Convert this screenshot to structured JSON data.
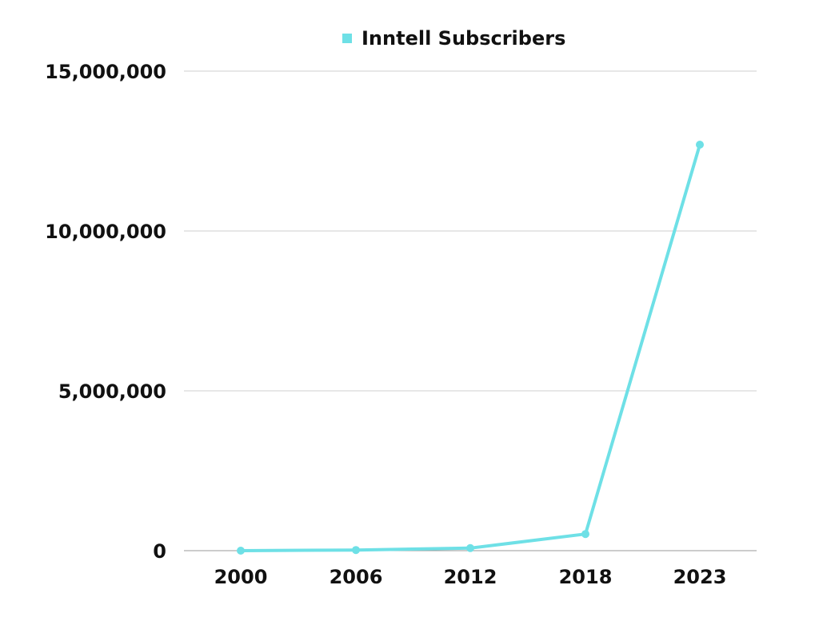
{
  "chart_data": {
    "type": "line",
    "title": "",
    "xlabel": "",
    "ylabel": "",
    "categories": [
      "2000",
      "2006",
      "2012",
      "2018",
      "2023"
    ],
    "series": [
      {
        "name": "Inntell Subscribers",
        "color": "#6ee0e6",
        "values": [
          0,
          20000,
          80000,
          520000,
          12700000
        ]
      }
    ],
    "yticks": [
      "0",
      "5,000,000",
      "10,000,000",
      "15,000,000"
    ],
    "ylim": [
      0,
      15000000
    ],
    "grid": true,
    "legend_position": "top-center"
  }
}
